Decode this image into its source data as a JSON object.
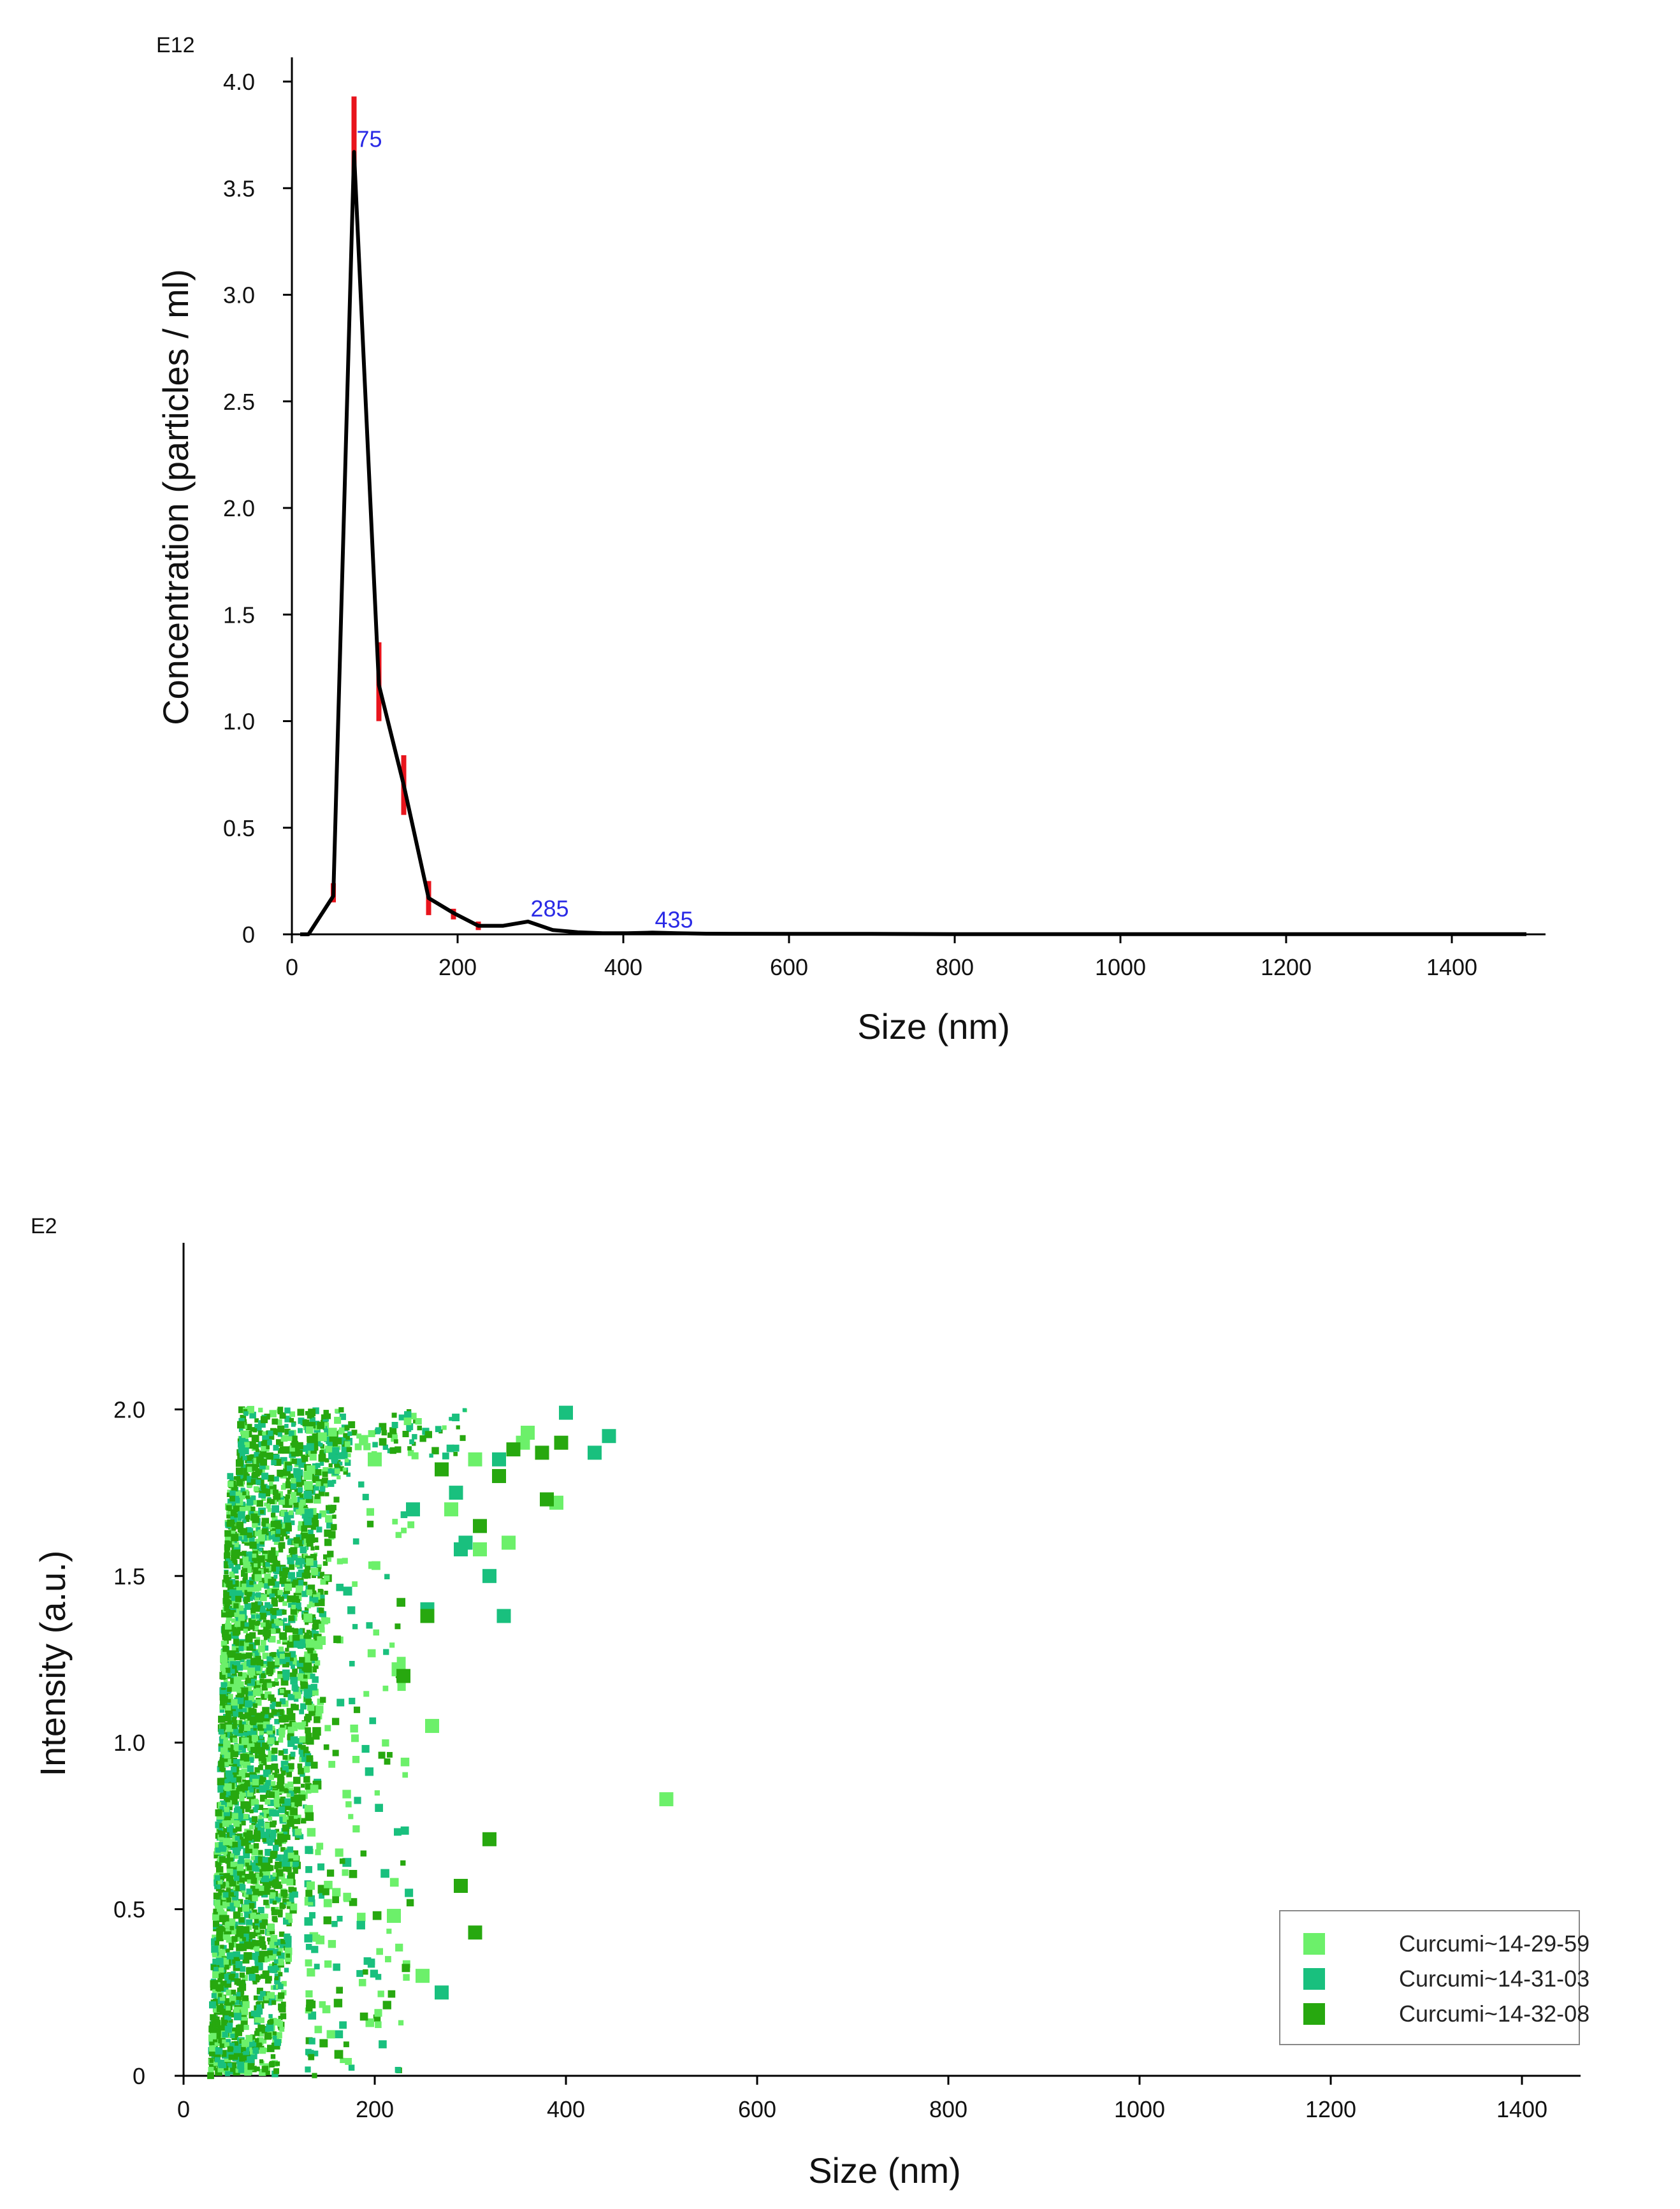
{
  "chart_data": [
    {
      "type": "line",
      "title": "",
      "xlabel": "Size (nm)",
      "ylabel": "Concentration (particles / ml)",
      "y_exponent": "E12",
      "xlim": [
        0,
        1500
      ],
      "ylim": [
        0,
        4.0
      ],
      "x_ticks": [
        0,
        200,
        400,
        600,
        800,
        1000,
        1200,
        1400
      ],
      "x_tick_labels": [
        "0",
        "200",
        "400",
        "600",
        "800",
        "1000",
        "1200",
        "1400"
      ],
      "y_ticks": [
        0,
        0.5,
        1.0,
        1.5,
        2.0,
        2.5,
        3.0,
        3.5,
        4.0
      ],
      "y_tick_labels": [
        "0",
        "0.5",
        "1.0",
        "1.5",
        "2.0",
        "2.5",
        "3.0",
        "3.5",
        "4.0"
      ],
      "grid": false,
      "line_color": "#000000",
      "error_color": "#e8141c",
      "label_color": "#2a2ae6",
      "series": [
        {
          "x": [
            10,
            20,
            50,
            75,
            105,
            135,
            165,
            195,
            225,
            255,
            285,
            315,
            345,
            375,
            405,
            435,
            465,
            500,
            600,
            700,
            800,
            900,
            1000,
            1100,
            1200,
            1300,
            1400,
            1490
          ],
          "y": [
            0.0,
            0.0,
            0.18,
            3.67,
            1.17,
            0.7,
            0.17,
            0.1,
            0.04,
            0.04,
            0.06,
            0.02,
            0.01,
            0.005,
            0.005,
            0.008,
            0.005,
            0.003,
            0.002,
            0.002,
            0.001,
            0.001,
            0.001,
            0.001,
            0.001,
            0.001,
            0.001,
            0.001
          ]
        }
      ],
      "error_bars": [
        {
          "x": 50,
          "low": 0.15,
          "high": 0.24
        },
        {
          "x": 75,
          "low": 3.45,
          "high": 3.93
        },
        {
          "x": 105,
          "low": 1.0,
          "high": 1.37
        },
        {
          "x": 135,
          "low": 0.56,
          "high": 0.84
        },
        {
          "x": 165,
          "low": 0.09,
          "high": 0.25
        },
        {
          "x": 195,
          "low": 0.07,
          "high": 0.12
        },
        {
          "x": 225,
          "low": 0.02,
          "high": 0.06
        }
      ],
      "annotations": [
        {
          "text": "75",
          "x": 75,
          "y": 3.67
        },
        {
          "text": "285",
          "x": 285,
          "y": 0.06
        },
        {
          "text": "435",
          "x": 435,
          "y": 0.008
        }
      ]
    },
    {
      "type": "scatter",
      "title": "",
      "xlabel": "Size (nm)",
      "ylabel": "Intensity (a.u.)",
      "y_exponent": "E2",
      "xlim": [
        0,
        1500
      ],
      "ylim": [
        0,
        2.5
      ],
      "x_ticks": [
        0,
        200,
        400,
        600,
        800,
        1000,
        1200,
        1400
      ],
      "x_tick_labels": [
        "0",
        "200",
        "400",
        "600",
        "800",
        "1000",
        "1200",
        "1400"
      ],
      "y_ticks": [
        0,
        0.5,
        1.0,
        1.5,
        2.0
      ],
      "y_tick_labels": [
        "0",
        "0.5",
        "1.0",
        "1.5",
        "2.0"
      ],
      "grid": false,
      "legend_position": "bottom-right",
      "series": [
        {
          "name": "Curcumi~14-29-59",
          "color": "#6cf06a"
        },
        {
          "name": "Curcumi~14-31-03",
          "color": "#19c07e"
        },
        {
          "name": "Curcumi~14-32-08",
          "color": "#27a80f"
        }
      ],
      "points": [
        [
          0,
          360,
          1.93
        ],
        [
          0,
          355,
          1.9
        ],
        [
          0,
          305,
          1.85
        ],
        [
          0,
          390,
          1.72
        ],
        [
          0,
          340,
          1.6
        ],
        [
          0,
          505,
          0.83
        ],
        [
          0,
          220,
          0.48
        ],
        [
          0,
          250,
          0.3
        ],
        [
          0,
          260,
          1.05
        ],
        [
          0,
          225,
          1.22
        ],
        [
          0,
          200,
          1.85
        ],
        [
          0,
          280,
          1.7
        ],
        [
          0,
          310,
          1.58
        ],
        [
          1,
          400,
          1.99
        ],
        [
          1,
          445,
          1.92
        ],
        [
          1,
          430,
          1.87
        ],
        [
          1,
          295,
          1.6
        ],
        [
          1,
          290,
          1.58
        ],
        [
          1,
          320,
          1.5
        ],
        [
          1,
          335,
          1.38
        ],
        [
          1,
          270,
          0.25
        ],
        [
          1,
          255,
          1.4
        ],
        [
          1,
          240,
          1.7
        ],
        [
          1,
          330,
          1.85
        ],
        [
          1,
          285,
          1.75
        ],
        [
          2,
          395,
          1.9
        ],
        [
          2,
          375,
          1.87
        ],
        [
          2,
          330,
          1.8
        ],
        [
          2,
          380,
          1.73
        ],
        [
          2,
          310,
          1.65
        ],
        [
          2,
          255,
          1.38
        ],
        [
          2,
          290,
          0.57
        ],
        [
          2,
          305,
          0.43
        ],
        [
          2,
          320,
          0.71
        ],
        [
          2,
          230,
          1.2
        ],
        [
          2,
          345,
          1.88
        ],
        [
          2,
          270,
          1.82
        ]
      ]
    }
  ]
}
